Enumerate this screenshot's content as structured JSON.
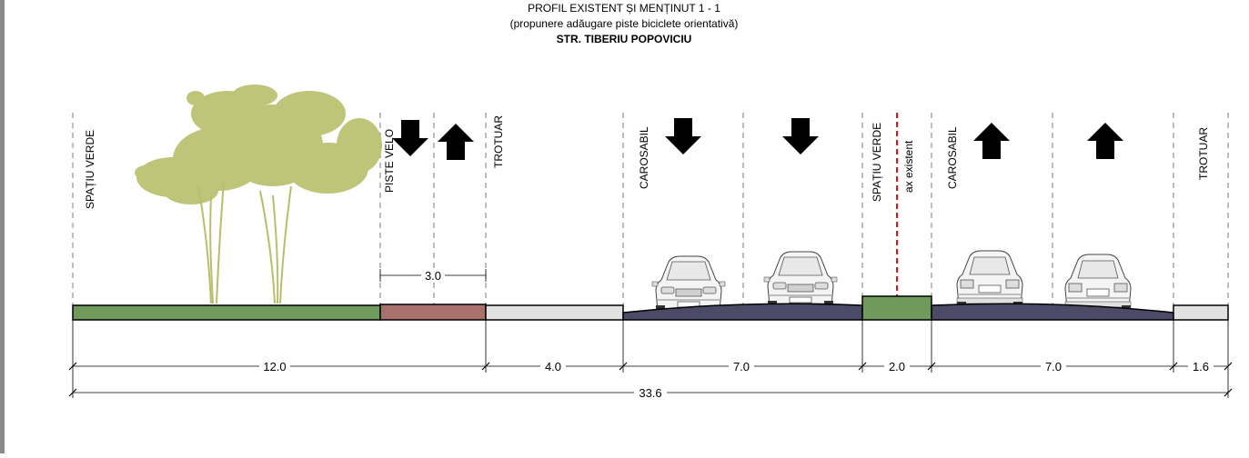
{
  "title": {
    "line1": "PROFIL EXISTENT ȘI MENȚINUT 1 - 1",
    "line2": "(propunere adăugare piste biciclete orientativă)",
    "line3": "STR. TIBERIU POPOVICIU"
  },
  "zones": {
    "spatiu_verde_left": "SPAȚIU VERDE",
    "piste_velo": "PISTE VELO",
    "trotuar_left": "TROTUAR",
    "carosabil_left": "CAROSABIL",
    "spatiu_verde_mid": "SPAȚIU VERDE",
    "ax_existent": "ax existent",
    "carosabil_right": "CAROSABIL",
    "trotuar_right": "TROTUAR"
  },
  "dimensions": {
    "bike": "3.0",
    "green_left": "12.0",
    "trotuar_left": "4.0",
    "carosabil_left": "7.0",
    "median": "2.0",
    "carosabil_right": "7.0",
    "trotuar_right": "1.6",
    "total": "33.6"
  },
  "colors": {
    "green": "#6f9a5c",
    "bike_lane": "#a9716b",
    "sidewalk": "#e2e2e2",
    "asphalt": "#4c4a66",
    "tree": "#b8bf6a",
    "axis": "#e01515"
  },
  "icons": {
    "arrow_down": "arrow-down-icon",
    "arrow_up": "arrow-up-icon",
    "car": "car-icon",
    "tree": "tree-icon"
  }
}
